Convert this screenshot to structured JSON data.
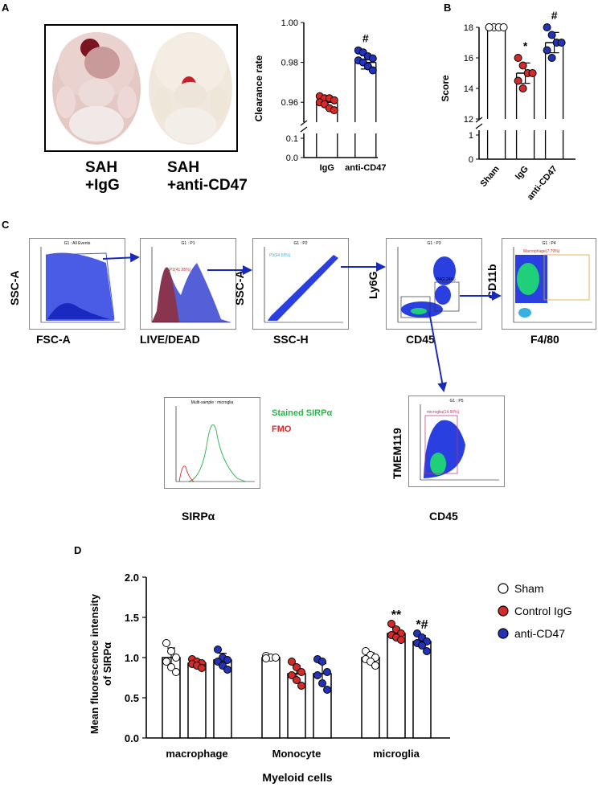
{
  "panel_labels": {
    "a": "A",
    "b": "B",
    "c": "C",
    "d": "D"
  },
  "panel_a": {
    "captions": [
      {
        "line1": "SAH",
        "line2": "+IgG"
      },
      {
        "line1": "SAH",
        "line2": "+anti-CD47"
      }
    ]
  },
  "chart_a": {
    "type": "scatter-bar",
    "ylabel": "Clearance rate",
    "yticks_upper": [
      "0.96",
      "0.98",
      "1.00"
    ],
    "yticks_lower": [
      "0.0",
      "0.1"
    ],
    "categories": [
      "IgG",
      "anti-CD47"
    ],
    "means": [
      0.96,
      0.98
    ],
    "points": [
      [
        0.963,
        0.962,
        0.962,
        0.961,
        0.96,
        0.959,
        0.957,
        0.956
      ],
      [
        0.986,
        0.985,
        0.983,
        0.982,
        0.981,
        0.98,
        0.978,
        0.976
      ]
    ],
    "colors": [
      "#d42a2a",
      "#2233b8"
    ],
    "annotations": [
      "",
      "#"
    ]
  },
  "chart_b": {
    "type": "scatter-bar",
    "ylabel": "Score",
    "yticks_upper": [
      "12",
      "14",
      "16",
      "18"
    ],
    "yticks_lower": [
      "0",
      "1"
    ],
    "categories": [
      "Sham",
      "IgG",
      "anti-CD47"
    ],
    "means": [
      18,
      15,
      17
    ],
    "points": [
      [
        18,
        18,
        18,
        18,
        18
      ],
      [
        16,
        15.5,
        15,
        15,
        14.5,
        14
      ],
      [
        18,
        17.5,
        17,
        17,
        16.5,
        16
      ]
    ],
    "colors": [
      "#ffffff",
      "#d42a2a",
      "#2233b8"
    ],
    "annotations": [
      "",
      "*",
      "#"
    ]
  },
  "flow": {
    "plots": [
      {
        "title": "G1 : All Events",
        "ylabel": "SSC-A",
        "xlabel": "FSC-A",
        "gate": ""
      },
      {
        "title": "G1 : P1",
        "ylabel": "",
        "xlabel": "LIVE/DEAD",
        "gate": "P2(41.95%)"
      },
      {
        "title": "G1 : P2",
        "ylabel": "SSC-A",
        "xlabel": "SSC-H",
        "gate": "P3(94.55%)"
      },
      {
        "title": "G1 : P3",
        "ylabel": "Ly6G",
        "xlabel": "CD45",
        "gate": "P4(2.24%)"
      },
      {
        "title": "G1 : P4",
        "ylabel": "CD11b",
        "xlabel": "F4/80",
        "gate": "Macrophage(7.79%)"
      },
      {
        "title": "G1 : P5",
        "ylabel": "TMEM119",
        "xlabel": "CD45",
        "gate": "microglia(14.90%)"
      }
    ],
    "histogram": {
      "title": "Multi-sample : microglia",
      "xlabel": "SIRPα",
      "legend_stained": "Stained SIRPα",
      "legend_fmo": "FMO",
      "stained_color": "#2db34a",
      "fmo_color": "#d42a2a"
    }
  },
  "chart_d": {
    "type": "bar",
    "ylabel_line1": "Mean fluorescence intensity",
    "ylabel_line2": "of SIRPα",
    "xlabel": "Myeloid cells",
    "ylim": [
      0,
      2.0
    ],
    "yticks": [
      "0.0",
      "0.5",
      "1.0",
      "1.5",
      "2.0"
    ],
    "categories": [
      "macrophage",
      "Monocyte",
      "microglia"
    ],
    "series": [
      {
        "name": "Sham",
        "values": [
          1.0,
          1.0,
          1.0
        ],
        "color": "#ffffff",
        "points": [
          [
            1.18,
            1.08,
            1.0,
            0.95,
            0.88,
            0.82
          ],
          [
            1.02,
            1.0,
            1.0,
            0.99
          ],
          [
            1.08,
            1.03,
            1.0,
            0.98,
            0.95,
            0.9
          ]
        ]
      },
      {
        "name": "Control IgG",
        "values": [
          0.93,
          0.8,
          1.3
        ],
        "color": "#d42a2a",
        "points": [
          [
            0.98,
            0.95,
            0.93,
            0.92,
            0.9,
            0.87
          ],
          [
            0.95,
            0.88,
            0.82,
            0.78,
            0.72,
            0.65
          ],
          [
            1.42,
            1.35,
            1.3,
            1.28,
            1.25,
            1.22
          ]
        ]
      },
      {
        "name": "anti-CD47",
        "values": [
          0.97,
          0.8,
          1.2
        ],
        "color": "#2233b8",
        "points": [
          [
            1.1,
            1.0,
            0.97,
            0.95,
            0.9,
            0.85
          ],
          [
            0.98,
            0.95,
            0.82,
            0.78,
            0.68,
            0.6
          ],
          [
            1.3,
            1.25,
            1.2,
            1.18,
            1.15,
            1.08
          ]
        ]
      }
    ],
    "annotations": [
      [
        "",
        "",
        ""
      ],
      [
        "",
        "",
        "**"
      ],
      [
        "",
        "",
        "*#"
      ]
    ]
  }
}
